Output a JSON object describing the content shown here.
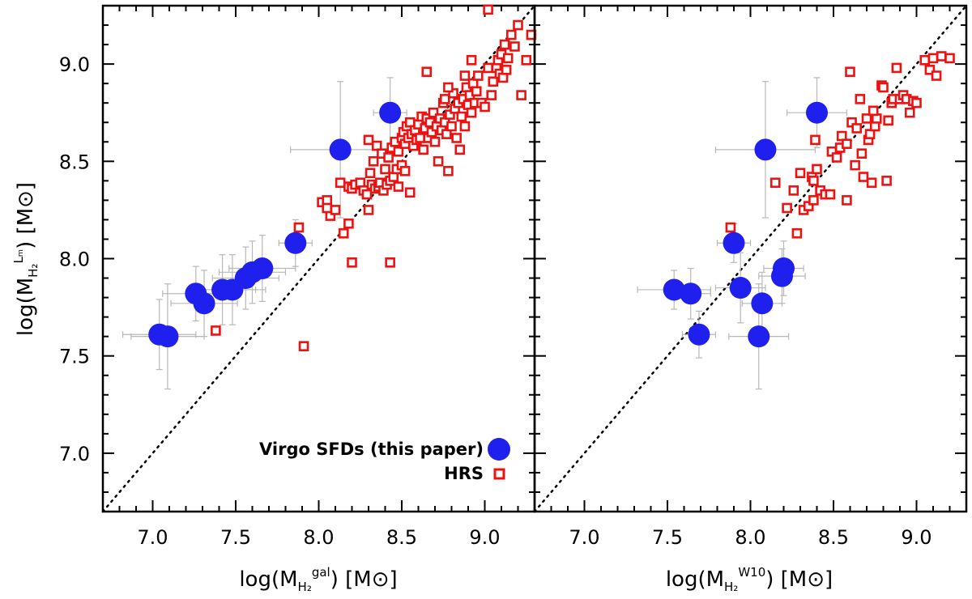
{
  "colors": {
    "virgo": "#1f1fee",
    "hrs": "#ee1111",
    "errorbar": "#b8b8b8",
    "axis": "#000000"
  },
  "legend": {
    "virgo_label": "Virgo SFDs (this paper)",
    "hrs_label": "HRS"
  },
  "chart_data": [
    {
      "type": "scatter",
      "title": "",
      "xlabel_main": "log(M",
      "xlabel_sub": "H₂",
      "xlabel_sup": "gal",
      "xlabel_unit": ") [M⊙]",
      "ylabel_main": "log(M",
      "ylabel_sub": "H₂",
      "ylabel_sup": "Lₘ",
      "ylabel_unit": ") [M⊙]",
      "xlim": [
        6.7,
        9.3
      ],
      "ylim": [
        6.7,
        9.3
      ],
      "xticks": [
        7.0,
        7.5,
        8.0,
        8.5,
        9.0
      ],
      "xtick_labels": [
        "7.0",
        "7.5",
        "8.0",
        "8.5",
        "9.0"
      ],
      "yticks": [
        7.0,
        7.5,
        8.0,
        8.5,
        9.0
      ],
      "ytick_labels": [
        "7.0",
        "7.5",
        "8.0",
        "8.5",
        "9.0"
      ],
      "one_to_one_line": true,
      "series": [
        {
          "name": "Virgo SFDs (this paper)",
          "marker": "filled-circle",
          "points": [
            {
              "x": 7.04,
              "y": 7.61,
              "xerr": 0.22,
              "yerr": 0.18
            },
            {
              "x": 7.09,
              "y": 7.6,
              "xerr": 0.22,
              "yerr": 0.27
            },
            {
              "x": 7.26,
              "y": 7.82,
              "xerr": 0.2,
              "yerr": 0.14
            },
            {
              "x": 7.31,
              "y": 7.77,
              "xerr": 0.2,
              "yerr": 0.17
            },
            {
              "x": 7.42,
              "y": 7.84,
              "xerr": 0.2,
              "yerr": 0.18
            },
            {
              "x": 7.48,
              "y": 7.84,
              "xerr": 0.2,
              "yerr": 0.18
            },
            {
              "x": 7.56,
              "y": 7.9,
              "xerr": 0.2,
              "yerr": 0.16
            },
            {
              "x": 7.6,
              "y": 7.93,
              "xerr": 0.2,
              "yerr": 0.16
            },
            {
              "x": 7.66,
              "y": 7.95,
              "xerr": 0.2,
              "yerr": 0.17
            },
            {
              "x": 7.86,
              "y": 8.08,
              "xerr": 0.1,
              "yerr": 0.12
            },
            {
              "x": 8.13,
              "y": 8.56,
              "xerr": 0.3,
              "yerr": 0.35
            },
            {
              "x": 8.43,
              "y": 8.75,
              "xerr": 0.1,
              "yerr": 0.18
            }
          ]
        },
        {
          "name": "HRS",
          "marker": "open-square",
          "points": [
            [
              7.38,
              7.63
            ],
            [
              7.91,
              7.55
            ],
            [
              7.88,
              8.16
            ],
            [
              8.2,
              7.98
            ],
            [
              8.43,
              7.98
            ],
            [
              8.15,
              8.13
            ],
            [
              8.18,
              8.18
            ],
            [
              8.02,
              8.29
            ],
            [
              8.05,
              8.3
            ],
            [
              8.07,
              8.22
            ],
            [
              8.1,
              8.25
            ],
            [
              8.05,
              8.26
            ],
            [
              8.13,
              8.39
            ],
            [
              8.18,
              8.37
            ],
            [
              8.2,
              8.36
            ],
            [
              8.22,
              8.38
            ],
            [
              8.25,
              8.39
            ],
            [
              8.27,
              8.35
            ],
            [
              8.29,
              8.33
            ],
            [
              8.3,
              8.25
            ],
            [
              8.31,
              8.44
            ],
            [
              8.32,
              8.38
            ],
            [
              8.34,
              8.36
            ],
            [
              8.36,
              8.37
            ],
            [
              8.37,
              8.39
            ],
            [
              8.39,
              8.35
            ],
            [
              8.41,
              8.38
            ],
            [
              8.43,
              8.4
            ],
            [
              8.45,
              8.42
            ],
            [
              8.47,
              8.46
            ],
            [
              8.48,
              8.37
            ],
            [
              8.5,
              8.48
            ],
            [
              8.52,
              8.45
            ],
            [
              8.55,
              8.34
            ],
            [
              8.3,
              8.61
            ],
            [
              8.33,
              8.5
            ],
            [
              8.35,
              8.58
            ],
            [
              8.38,
              8.54
            ],
            [
              8.4,
              8.46
            ],
            [
              8.42,
              8.52
            ],
            [
              8.44,
              8.57
            ],
            [
              8.46,
              8.6
            ],
            [
              8.48,
              8.55
            ],
            [
              8.5,
              8.62
            ],
            [
              8.51,
              8.65
            ],
            [
              8.52,
              8.59
            ],
            [
              8.53,
              8.68
            ],
            [
              8.54,
              8.62
            ],
            [
              8.55,
              8.7
            ],
            [
              8.56,
              8.64
            ],
            [
              8.57,
              8.58
            ],
            [
              8.58,
              8.66
            ],
            [
              8.59,
              8.61
            ],
            [
              8.6,
              8.69
            ],
            [
              8.61,
              8.62
            ],
            [
              8.62,
              8.73
            ],
            [
              8.63,
              8.56
            ],
            [
              8.64,
              8.67
            ],
            [
              8.65,
              8.72
            ],
            [
              8.66,
              8.62
            ],
            [
              8.67,
              8.7
            ],
            [
              8.68,
              8.65
            ],
            [
              8.69,
              8.75
            ],
            [
              8.7,
              8.6
            ],
            [
              8.71,
              8.68
            ],
            [
              8.72,
              8.5
            ],
            [
              8.73,
              8.72
            ],
            [
              8.74,
              8.66
            ],
            [
              8.75,
              8.8
            ],
            [
              8.76,
              8.7
            ],
            [
              8.77,
              8.64
            ],
            [
              8.78,
              8.45
            ],
            [
              8.79,
              8.74
            ],
            [
              8.8,
              8.68
            ],
            [
              8.81,
              8.85
            ],
            [
              8.82,
              8.77
            ],
            [
              8.83,
              8.62
            ],
            [
              8.84,
              8.8
            ],
            [
              8.85,
              8.56
            ],
            [
              8.86,
              8.73
            ],
            [
              8.87,
              8.82
            ],
            [
              8.88,
              8.68
            ],
            [
              8.89,
              8.88
            ],
            [
              8.9,
              8.79
            ],
            [
              8.91,
              8.84
            ],
            [
              8.92,
              8.75
            ],
            [
              8.93,
              8.9
            ],
            [
              8.94,
              8.8
            ],
            [
              8.95,
              8.86
            ],
            [
              8.96,
              8.94
            ],
            [
              8.98,
              8.8
            ],
            [
              9.0,
              8.78
            ],
            [
              9.02,
              8.98
            ],
            [
              9.04,
              8.84
            ],
            [
              9.05,
              8.91
            ],
            [
              9.07,
              8.98
            ],
            [
              9.08,
              9.02
            ],
            [
              9.09,
              8.95
            ],
            [
              9.1,
              9.05
            ],
            [
              9.11,
              8.93
            ],
            [
              9.12,
              9.1
            ],
            [
              9.13,
              8.97
            ],
            [
              9.14,
              9.03
            ],
            [
              9.16,
              9.15
            ],
            [
              9.18,
              9.09
            ],
            [
              9.2,
              9.2
            ],
            [
              9.22,
              8.84
            ],
            [
              9.25,
              9.02
            ],
            [
              9.28,
              9.15
            ],
            [
              9.02,
              9.28
            ],
            [
              8.65,
              8.96
            ],
            [
              8.76,
              8.82
            ],
            [
              8.78,
              8.88
            ],
            [
              8.88,
              8.94
            ],
            [
              8.92,
              9.02
            ]
          ]
        }
      ]
    },
    {
      "type": "scatter",
      "title": "",
      "xlabel_main": "log(M",
      "xlabel_sub": "H₂",
      "xlabel_sup": "W10",
      "xlabel_unit": ") [M⊙]",
      "xlim": [
        6.7,
        9.3
      ],
      "ylim": [
        6.7,
        9.3
      ],
      "xticks": [
        7.0,
        7.5,
        8.0,
        8.5,
        9.0
      ],
      "xtick_labels": [
        "7.0",
        "7.5",
        "8.0",
        "8.5",
        "9.0"
      ],
      "one_to_one_line": true,
      "series": [
        {
          "name": "Virgo SFDs (this paper)",
          "marker": "filled-circle",
          "points": [
            {
              "x": 7.54,
              "y": 7.84,
              "xerr": 0.22,
              "yerr": 0.1
            },
            {
              "x": 7.64,
              "y": 7.82,
              "xerr": 0.12,
              "yerr": 0.13
            },
            {
              "x": 7.69,
              "y": 7.61,
              "xerr": 0.1,
              "yerr": 0.12
            },
            {
              "x": 7.9,
              "y": 8.08,
              "xerr": 0.1,
              "yerr": 0.1
            },
            {
              "x": 7.94,
              "y": 7.85,
              "xerr": 0.15,
              "yerr": 0.18
            },
            {
              "x": 8.05,
              "y": 7.6,
              "xerr": 0.18,
              "yerr": 0.27
            },
            {
              "x": 8.07,
              "y": 7.77,
              "xerr": 0.12,
              "yerr": 0.16
            },
            {
              "x": 8.09,
              "y": 8.56,
              "xerr": 0.3,
              "yerr": 0.35
            },
            {
              "x": 8.19,
              "y": 7.91,
              "xerr": 0.14,
              "yerr": 0.14
            },
            {
              "x": 8.2,
              "y": 7.95,
              "xerr": 0.12,
              "yerr": 0.14
            },
            {
              "x": 8.4,
              "y": 8.75,
              "xerr": 0.18,
              "yerr": 0.18
            }
          ]
        },
        {
          "name": "HRS",
          "marker": "open-square",
          "points": [
            [
              7.88,
              8.16
            ],
            [
              8.15,
              8.39
            ],
            [
              8.22,
              8.26
            ],
            [
              8.26,
              8.35
            ],
            [
              8.28,
              8.13
            ],
            [
              8.3,
              8.44
            ],
            [
              8.32,
              8.25
            ],
            [
              8.35,
              8.27
            ],
            [
              8.37,
              8.42
            ],
            [
              8.38,
              8.3
            ],
            [
              8.39,
              8.61
            ],
            [
              8.4,
              8.46
            ],
            [
              8.42,
              8.35
            ],
            [
              8.45,
              8.33
            ],
            [
              8.48,
              8.33
            ],
            [
              8.49,
              8.55
            ],
            [
              8.52,
              8.52
            ],
            [
              8.54,
              8.57
            ],
            [
              8.55,
              8.63
            ],
            [
              8.58,
              8.59
            ],
            [
              8.6,
              8.96
            ],
            [
              8.61,
              8.7
            ],
            [
              8.63,
              8.48
            ],
            [
              8.64,
              8.67
            ],
            [
              8.66,
              8.82
            ],
            [
              8.67,
              8.54
            ],
            [
              8.68,
              8.42
            ],
            [
              8.7,
              8.72
            ],
            [
              8.71,
              8.61
            ],
            [
              8.72,
              8.64
            ],
            [
              8.73,
              8.39
            ],
            [
              8.75,
              8.68
            ],
            [
              8.76,
              8.72
            ],
            [
              8.79,
              8.89
            ],
            [
              8.8,
              8.88
            ],
            [
              8.82,
              8.4
            ],
            [
              8.83,
              8.71
            ],
            [
              8.85,
              8.8
            ],
            [
              8.86,
              8.82
            ],
            [
              8.88,
              8.98
            ],
            [
              8.9,
              8.82
            ],
            [
              8.92,
              8.84
            ],
            [
              8.94,
              8.82
            ],
            [
              8.96,
              8.75
            ],
            [
              8.98,
              8.81
            ],
            [
              9.0,
              8.8
            ],
            [
              9.05,
              9.02
            ],
            [
              9.08,
              8.97
            ],
            [
              9.1,
              9.03
            ],
            [
              9.12,
              8.94
            ],
            [
              9.15,
              9.04
            ],
            [
              9.2,
              9.03
            ],
            [
              8.38,
              8.4
            ],
            [
              8.58,
              8.3
            ],
            [
              8.74,
              8.76
            ]
          ]
        }
      ]
    }
  ]
}
